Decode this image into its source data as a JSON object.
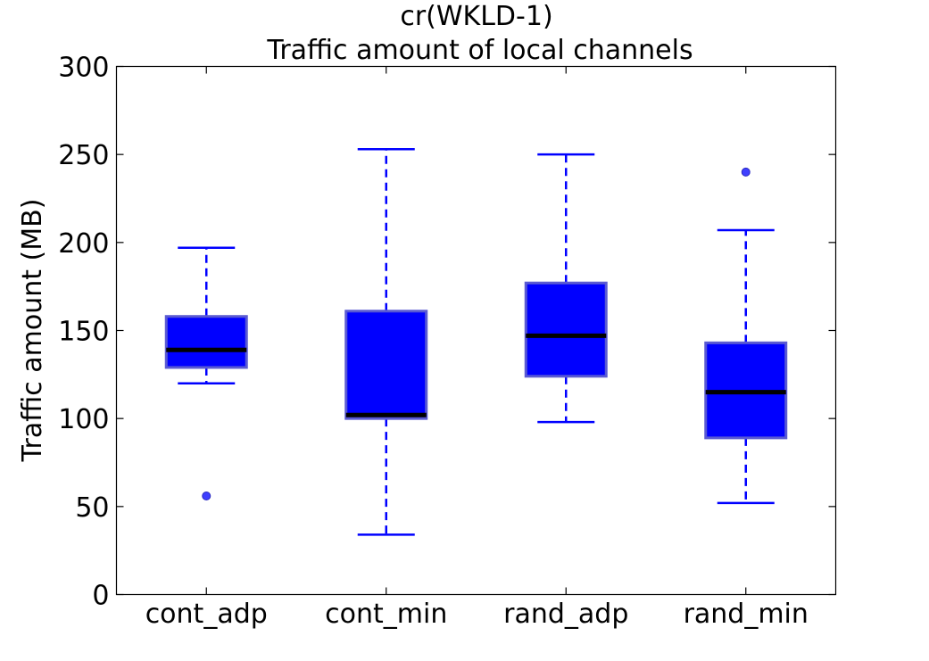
{
  "chart_data": {
    "type": "box",
    "title": "cr(WKLD-1)",
    "subtitle": "Traffic amount of local channels",
    "xlabel": "",
    "ylabel": "Traffic amount (MB)",
    "ylim": [
      0,
      300
    ],
    "yticks": [
      0,
      50,
      100,
      150,
      200,
      250,
      300
    ],
    "grid": false,
    "categories": [
      "cont_adp",
      "cont_min",
      "rand_adp",
      "rand_min"
    ],
    "boxes": [
      {
        "whisker_low": 120,
        "q1": 129,
        "median": 139,
        "q3": 158,
        "whisker_high": 197,
        "outliers": [
          56
        ]
      },
      {
        "whisker_low": 34,
        "q1": 100,
        "median": 102,
        "q3": 161,
        "whisker_high": 253,
        "outliers": []
      },
      {
        "whisker_low": 98,
        "q1": 124,
        "median": 147,
        "q3": 177,
        "whisker_high": 250,
        "outliers": []
      },
      {
        "whisker_low": 52,
        "q1": 89,
        "median": 115,
        "q3": 143,
        "whisker_high": 207,
        "outliers": [
          240
        ]
      }
    ],
    "colors": {
      "box_fill": "#0000ff",
      "box_edge": "#5a5ad2",
      "whisker": "#0000ff",
      "median": "#000000",
      "outlier": "#3f3fff"
    }
  }
}
